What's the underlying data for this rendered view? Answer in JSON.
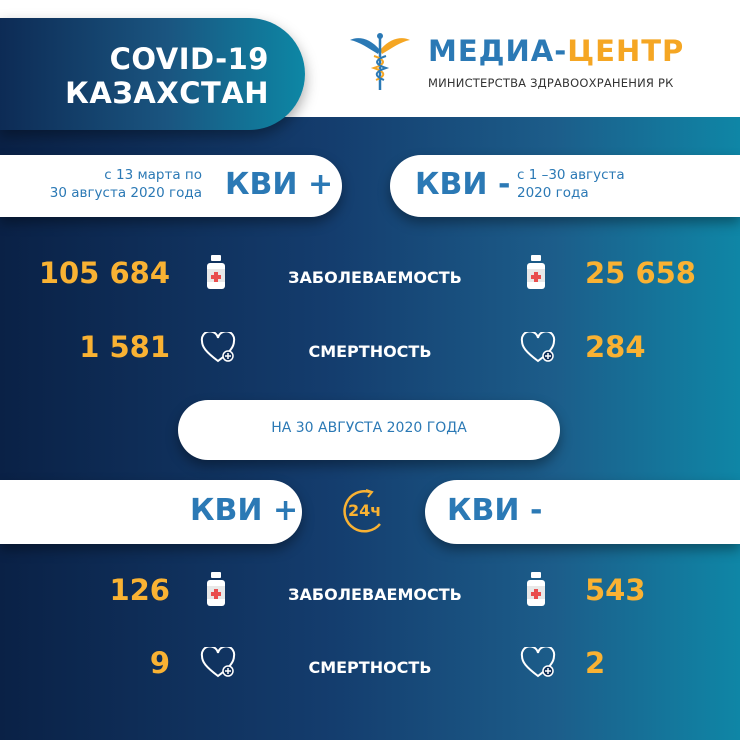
{
  "header": {
    "title_line1": "COVID-19",
    "title_line2": "КАЗАХСТАН",
    "logo": {
      "name_part1": "МЕДИА-",
      "name_part2": "ЦЕНТР",
      "subtitle": "МИНИСТЕРСТВА ЗДРАВООХРАНЕНИЯ РК"
    }
  },
  "cumulative": {
    "left": {
      "period": [
        "с 13 марта по",
        "30 августа 2020 года"
      ],
      "label": "КВИ +"
    },
    "right": {
      "period": [
        "с 1 –30 августа",
        "2020 года"
      ],
      "label": "КВИ -"
    },
    "rows": [
      {
        "label": "ЗАБОЛЕВАЕМОСТЬ",
        "left": "105 684",
        "right": "25 658",
        "icon": "medicine-bottle-icon"
      },
      {
        "label": "СМЕРТНОСТЬ",
        "left": "1 581",
        "right": "284",
        "icon": "heart-icon"
      }
    ]
  },
  "daily": {
    "date": "НА 30 АВГУСТА 2020 ГОДА",
    "left_label": "КВИ +",
    "right_label": "КВИ -",
    "badge": "24ч",
    "rows": [
      {
        "label": "ЗАБОЛЕВАЕМОСТЬ",
        "left": "126",
        "right": "543",
        "icon": "medicine-bottle-icon"
      },
      {
        "label": "СМЕРТНОСТЬ",
        "left": "9",
        "right": "2",
        "icon": "heart-icon"
      }
    ]
  },
  "colors": {
    "accent_orange": "#f9b233",
    "brand_blue": "#2b79b5",
    "bg_dark": "#0a2146",
    "bg_teal": "#0f86a6"
  }
}
